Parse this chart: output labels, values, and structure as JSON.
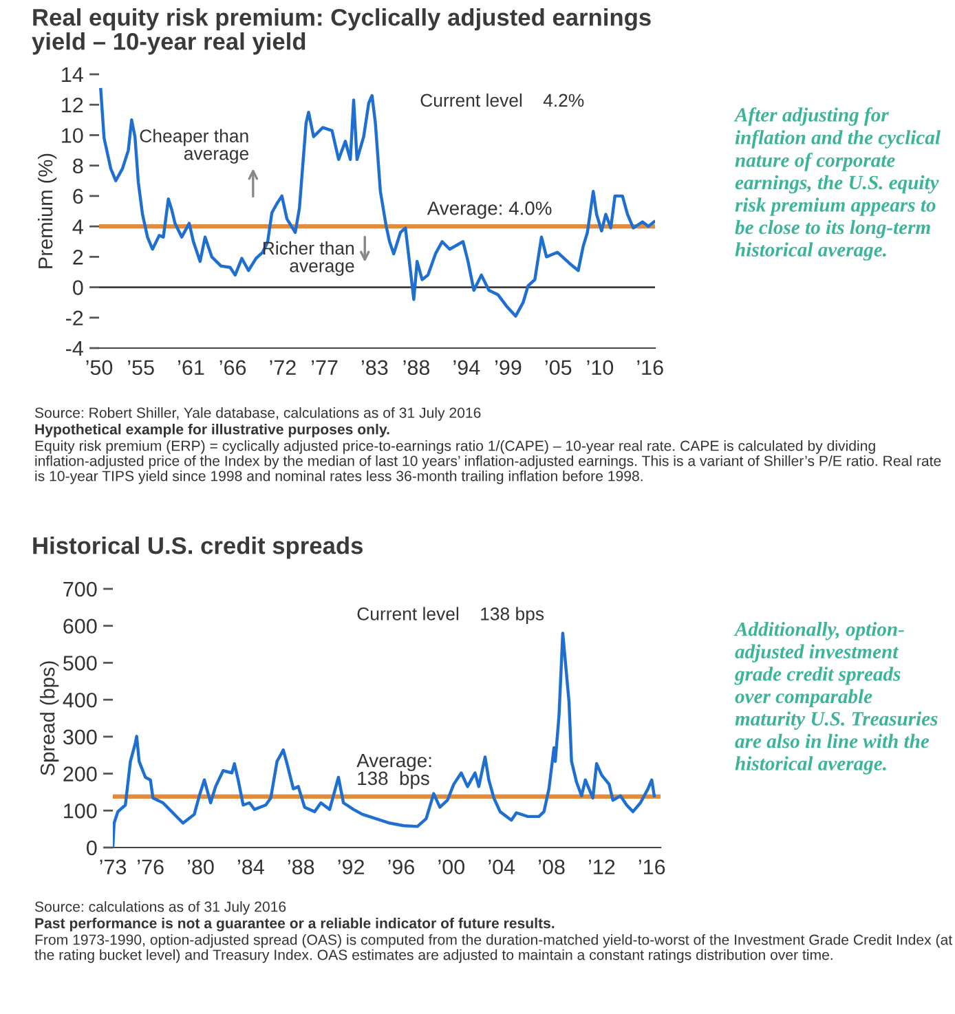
{
  "chart_data": [
    {
      "type": "line",
      "title": "Real equity risk premium: Cyclically adjusted earnings\nyield – 10-year real yield",
      "ylabel": "Premium (%)",
      "x": [
        1950.2,
        1950.6,
        1951.4,
        1952,
        1952.8,
        1953.5,
        1953.9,
        1954.3,
        1954.7,
        1955.2,
        1955.8,
        1956.4,
        1957.2,
        1957.7,
        1958.3,
        1958.7,
        1959.1,
        1959.9,
        1960.8,
        1961.3,
        1962.1,
        1962.7,
        1963.5,
        1964.6,
        1965.7,
        1966.3,
        1967.1,
        1967.9,
        1968.8,
        1969.6,
        1970.2,
        1970.7,
        1971.3,
        1971.9,
        1972.5,
        1973.5,
        1974.0,
        1974.8,
        1975.1,
        1975.7,
        1976.8,
        1977.9,
        1978.7,
        1979.5,
        1980.1,
        1980.5,
        1980.9,
        1981.7,
        1982.3,
        1982.7,
        1983.1,
        1983.7,
        1984.4,
        1984.8,
        1985.3,
        1986.1,
        1986.7,
        1987.3,
        1987.7,
        1988.1,
        1988.7,
        1989.4,
        1990.3,
        1991.1,
        1992.0,
        1993.6,
        1994.2,
        1994.9,
        1995.8,
        1996.7,
        1997.8,
        1998.9,
        1999.9,
        2000.8,
        2001.4,
        2002.2,
        2003.0,
        2003.6,
        2004.9,
        2006.3,
        2007.4,
        2008.0,
        2008.5,
        2009.2,
        2009.6,
        2010.2,
        2010.7,
        2011.3,
        2011.8,
        2012.7,
        2013.3,
        2014.0,
        2015.1,
        2015.8,
        2016.5
      ],
      "series": [
        {
          "color": "#1f6fd1",
          "values": [
            13.0,
            9.8,
            7.8,
            7.0,
            7.8,
            9.0,
            11.0,
            9.9,
            6.9,
            4.8,
            3.3,
            2.5,
            3.4,
            3.3,
            5.8,
            5.1,
            4.2,
            3.3,
            4.2,
            3.0,
            1.7,
            3.3,
            2.0,
            1.4,
            1.3,
            0.8,
            1.9,
            1.1,
            1.9,
            2.3,
            3.0,
            4.9,
            5.5,
            6.0,
            4.5,
            3.6,
            5.2,
            10.8,
            11.5,
            9.9,
            10.5,
            10.3,
            8.4,
            9.6,
            8.4,
            12.3,
            8.4,
            9.9,
            12.1,
            12.6,
            10.8,
            6.3,
            4.0,
            3.0,
            2.2,
            3.6,
            3.9,
            1.1,
            -0.8,
            1.7,
            0.5,
            0.8,
            2.2,
            3.0,
            2.5,
            3.0,
            1.7,
            -0.2,
            0.8,
            -0.2,
            -0.5,
            -1.3,
            -1.9,
            -1.0,
            0.1,
            0.5,
            3.3,
            2.0,
            2.3,
            1.6,
            1.1,
            2.7,
            3.6,
            6.3,
            4.8,
            3.7,
            4.8,
            3.9,
            6.0,
            6.0,
            4.8,
            3.9,
            4.3,
            4.0,
            4.3
          ]
        }
      ],
      "xlim": [
        1950,
        2016.6
      ],
      "ylim": [
        -4,
        14
      ],
      "xticks": [
        {
          "value": 1950,
          "label": "’50"
        },
        {
          "value": 1955,
          "label": "’55"
        },
        {
          "value": 1961,
          "label": "’61"
        },
        {
          "value": 1966,
          "label": "’66"
        },
        {
          "value": 1972,
          "label": "’72"
        },
        {
          "value": 1977,
          "label": "’77"
        },
        {
          "value": 1983,
          "label": "’83"
        },
        {
          "value": 1988,
          "label": "’88"
        },
        {
          "value": 1994,
          "label": "’94"
        },
        {
          "value": 1999,
          "label": "’99"
        },
        {
          "value": 2005,
          "label": "’05"
        },
        {
          "value": 2010,
          "label": "’10"
        },
        {
          "value": 2016,
          "label": "’16"
        }
      ],
      "yticks": [
        14,
        12,
        10,
        8,
        6,
        4,
        2,
        0,
        -2,
        -4
      ],
      "ref_lines": [
        {
          "axis": "y",
          "value": 4.0,
          "label": "Average: 4.0%",
          "color": "#e38b3b"
        },
        {
          "axis": "y",
          "value": 0,
          "color": "#3c3c3c"
        }
      ],
      "annotations": [
        "Current level    4.2%",
        "Cheaper than\naverage",
        "Richer than\naverage",
        "After adjusting for\ninflation and the cyclical\nnature of corporate\nearnings, the U.S. equity\nrisk premium appears to\nbe close to its long-term\nhistorical average.",
        "Source: Robert Shiller, Yale database, calculations as of 31 July 2016",
        "Hypothetical example for illustrative purposes only.",
        "Equity risk premium (ERP) = cyclically adjusted price-to-earnings ratio 1/(CAPE) – 10-year real rate. CAPE is calculated by dividing inflation-adjusted price of the Index by the median of last 10 years’ inflation-adjusted earnings. This is a variant of Shiller’s P/E ratio. Real rate is 10-year TIPS yield since 1998 and nominal rates less 36-month trailing inflation before 1998."
      ]
    },
    {
      "type": "line",
      "title": "Historical U.S. credit spreads",
      "ylabel": "Spread (bps)",
      "x": [
        1973.0,
        1973.1,
        1973.4,
        1974.0,
        1974.4,
        1974.8,
        1974.9,
        1975.1,
        1975.6,
        1976.0,
        1976.2,
        1977.0,
        1977.7,
        1978.6,
        1979.5,
        1979.9,
        1980.3,
        1980.8,
        1981.2,
        1981.8,
        1982.5,
        1982.7,
        1983.0,
        1983.4,
        1983.9,
        1984.3,
        1985.2,
        1985.6,
        1986.1,
        1986.6,
        1986.9,
        1987.4,
        1987.8,
        1988.3,
        1989.1,
        1989.6,
        1990.3,
        1991.0,
        1991.4,
        1992.2,
        1992.9,
        1994.0,
        1995.1,
        1996.2,
        1997.3,
        1998.0,
        1998.6,
        1999.1,
        1999.7,
        2000.2,
        2000.8,
        2001.3,
        2001.9,
        2002.2,
        2002.7,
        2003.0,
        2003.4,
        2003.9,
        2004.8,
        2005.2,
        2006.1,
        2007.0,
        2007.4,
        2007.8,
        2008.2,
        2008.3,
        2008.6,
        2008.9,
        2009.1,
        2009.4,
        2009.6,
        2010.0,
        2010.4,
        2010.7,
        2011.3,
        2011.6,
        2012.0,
        2012.6,
        2012.9,
        2013.5,
        2014.0,
        2014.5,
        2015.1,
        2015.7,
        2016.0,
        2016.2
      ],
      "series": [
        {
          "color": "#1f6fd1",
          "values": [
            0,
            66,
            97,
            115,
            233,
            283,
            301,
            233,
            190,
            183,
            134,
            121,
            97,
            66,
            90,
            140,
            183,
            121,
            165,
            208,
            202,
            227,
            183,
            115,
            121,
            103,
            115,
            134,
            233,
            264,
            227,
            159,
            165,
            109,
            97,
            121,
            103,
            190,
            121,
            103,
            90,
            78,
            66,
            59,
            57,
            78,
            146,
            109,
            128,
            171,
            202,
            165,
            202,
            165,
            245,
            183,
            134,
            97,
            74,
            94,
            84,
            84,
            97,
            159,
            270,
            233,
            357,
            580,
            506,
            394,
            233,
            177,
            140,
            183,
            134,
            227,
            196,
            171,
            128,
            140,
            115,
            97,
            121,
            159,
            183,
            140
          ]
        }
      ],
      "xlim": [
        1973,
        2016.7
      ],
      "ylim": [
        0,
        700
      ],
      "xticks": [
        {
          "value": 1973,
          "label": "’73"
        },
        {
          "value": 1976,
          "label": "’76"
        },
        {
          "value": 1980,
          "label": "’80"
        },
        {
          "value": 1984,
          "label": "’84"
        },
        {
          "value": 1988,
          "label": "’88"
        },
        {
          "value": 1992,
          "label": "’92"
        },
        {
          "value": 1996,
          "label": "’96"
        },
        {
          "value": 2000,
          "label": "’00"
        },
        {
          "value": 2004,
          "label": "’04"
        },
        {
          "value": 2008,
          "label": "’08"
        },
        {
          "value": 2012,
          "label": "’12"
        },
        {
          "value": 2016,
          "label": "’16"
        }
      ],
      "yticks": [
        700,
        600,
        500,
        400,
        300,
        200,
        100,
        0
      ],
      "ref_lines": [
        {
          "axis": "y",
          "value": 138,
          "label": "Average:\n138  bps",
          "color": "#e38b3b"
        }
      ],
      "annotations": [
        "Current level    138 bps",
        "Additionally, option-\nadjusted investment\ngrade credit spreads\nover comparable\nmaturity U.S. Treasuries\nare also in line with the\nhistorical average.",
        "Source: calculations as of 31 July 2016",
        "Past performance is not a guarantee or a reliable indicator of future results.",
        "From 1973-1990, option-adjusted spread (OAS) is computed from the duration-matched yield-to-worst of the Investment Grade Credit Index (at the rating bucket level) and Treasury Index. OAS estimates are adjusted to maintain a constant ratings distribution over time."
      ]
    }
  ]
}
